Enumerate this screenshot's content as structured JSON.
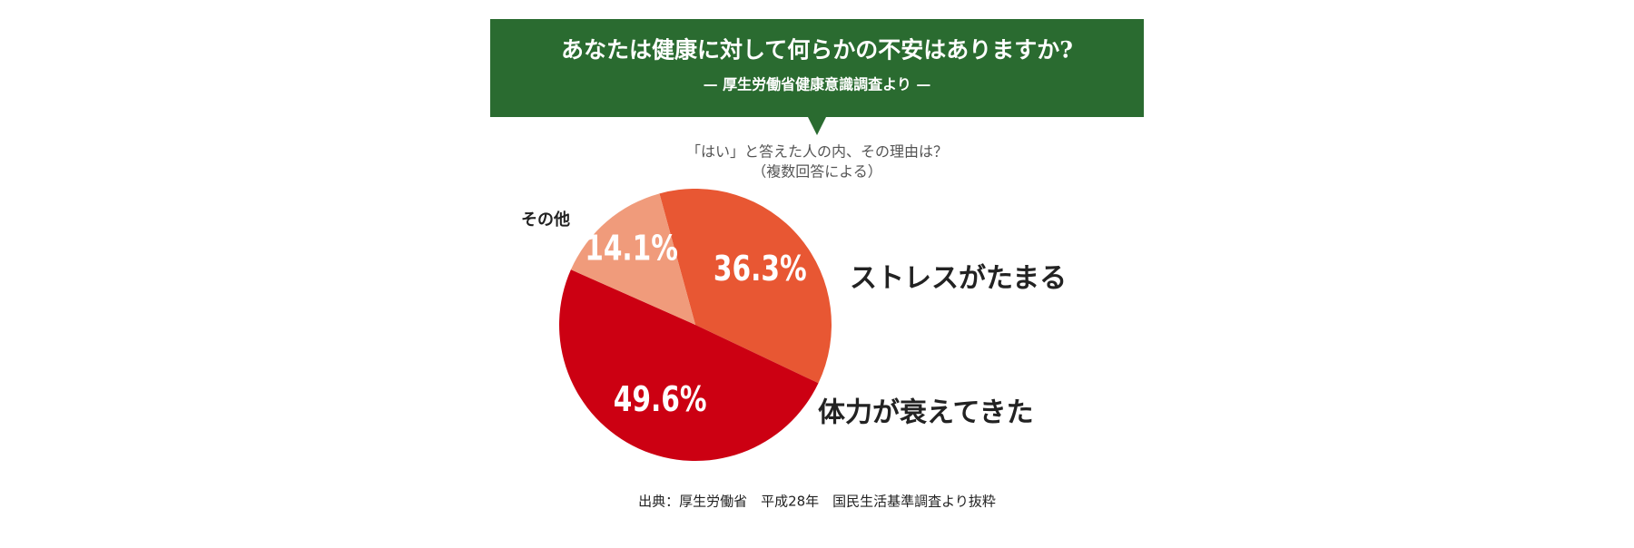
{
  "chart_data": {
    "type": "pie",
    "title": "あなたは健康に対して何らかの不安はありますか?",
    "subtitle": "— 厚生労働省健康意識調査より —",
    "annotations": [
      "「はい」と答えた人の内、その理由は？",
      "（複数回答による）"
    ],
    "categories": [
      "ストレスがたまる",
      "体力が衰えてきた",
      "その他"
    ],
    "values": [
      36.3,
      49.6,
      14.1
    ],
    "value_labels": [
      "36.3%",
      "49.6%",
      "14.1%"
    ],
    "colors": [
      "#e85733",
      "#cc0012",
      "#f09b7b"
    ],
    "source": "出典：厚生労働省　平成28年　国民生活基準調査より抜粋"
  }
}
